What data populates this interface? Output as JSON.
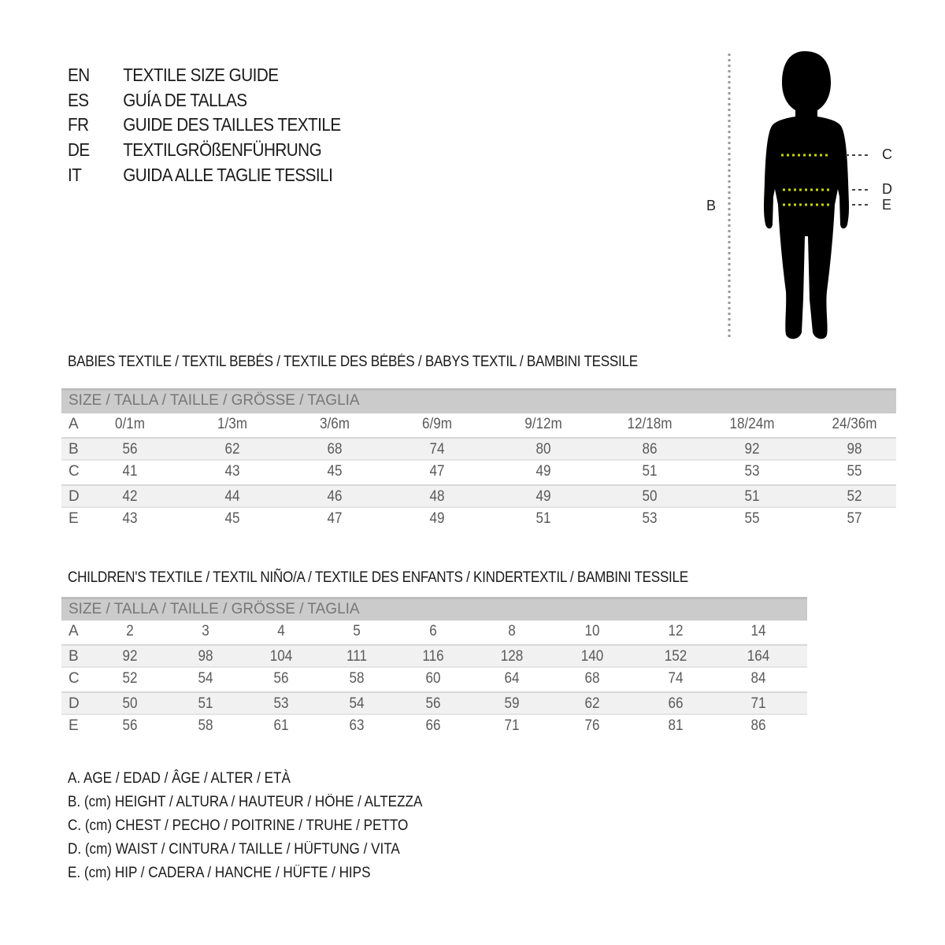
{
  "titles": [
    {
      "code": "EN",
      "text": "TEXTILE SIZE GUIDE"
    },
    {
      "code": "ES",
      "text": "GUÍA DE TALLAS"
    },
    {
      "code": "FR",
      "text": "GUIDE DES TAILLES TEXTILE"
    },
    {
      "code": "DE",
      "text": "TEXTILGRÖßENFÜHRUNG"
    },
    {
      "code": "IT",
      "text": "GUIDA ALLE TAGLIE TESSILI"
    }
  ],
  "figure": {
    "labels": {
      "B": "B",
      "C": "C",
      "D": "D",
      "E": "E"
    },
    "measure_line_color": "#c8d400"
  },
  "babies": {
    "title": "BABIES TEXTILE / TEXTIL BEBÉS / TEXTILE DES BÉBÉS / BABYS TEXTIL  / BAMBINI TESSILE",
    "header": "SIZE / TALLA / TAILLE / GRÖSSE / TAGLIA",
    "rows": [
      {
        "label": "A",
        "values": [
          "0/1m",
          "1/3m",
          "3/6m",
          "6/9m",
          "9/12m",
          "12/18m",
          "18/24m",
          "24/36m"
        ]
      },
      {
        "label": "B",
        "values": [
          "56",
          "62",
          "68",
          "74",
          "80",
          "86",
          "92",
          "98"
        ]
      },
      {
        "label": "C",
        "values": [
          "41",
          "43",
          "45",
          "47",
          "49",
          "51",
          "53",
          "55"
        ]
      },
      {
        "label": "D",
        "values": [
          "42",
          "44",
          "46",
          "48",
          "49",
          "50",
          "51",
          "52"
        ]
      },
      {
        "label": "E",
        "values": [
          "43",
          "45",
          "47",
          "49",
          "51",
          "53",
          "55",
          "57"
        ]
      }
    ]
  },
  "children": {
    "title": "CHILDREN'S TEXTILE / TEXTIL NIÑO/A / TEXTILE DES ENFANTS / KINDERTEXTIL / BAMBINI TESSILE",
    "header": "SIZE / TALLA / TAILLE / GRÖSSE / TAGLIA",
    "rows": [
      {
        "label": "A",
        "values": [
          "2",
          "3",
          "4",
          "5",
          "6",
          "8",
          "10",
          "12",
          "14"
        ]
      },
      {
        "label": "B",
        "values": [
          "92",
          "98",
          "104",
          "111",
          "116",
          "128",
          "140",
          "152",
          "164"
        ]
      },
      {
        "label": "C",
        "values": [
          "52",
          "54",
          "56",
          "58",
          "60",
          "64",
          "68",
          "74",
          "84"
        ]
      },
      {
        "label": "D",
        "values": [
          "50",
          "51",
          "53",
          "54",
          "56",
          "59",
          "62",
          "66",
          "71"
        ]
      },
      {
        "label": "E",
        "values": [
          "56",
          "58",
          "61",
          "63",
          "66",
          "71",
          "76",
          "81",
          "86"
        ]
      }
    ]
  },
  "legend": [
    "A. AGE / EDAD / ÂGE / ALTER / ETÀ",
    "B. (cm) HEIGHT / ALTURA / HAUTEUR / HÖHE / ALTEZZA",
    "C. (cm) CHEST / PECHO / POITRINE / TRUHE / PETTO",
    "D. (cm) WAIST / CINTURA / TAILLE / HÜFTUNG / VITA",
    "E. (cm) HIP / CADERA / HANCHE / HÜFTE / HIPS"
  ]
}
